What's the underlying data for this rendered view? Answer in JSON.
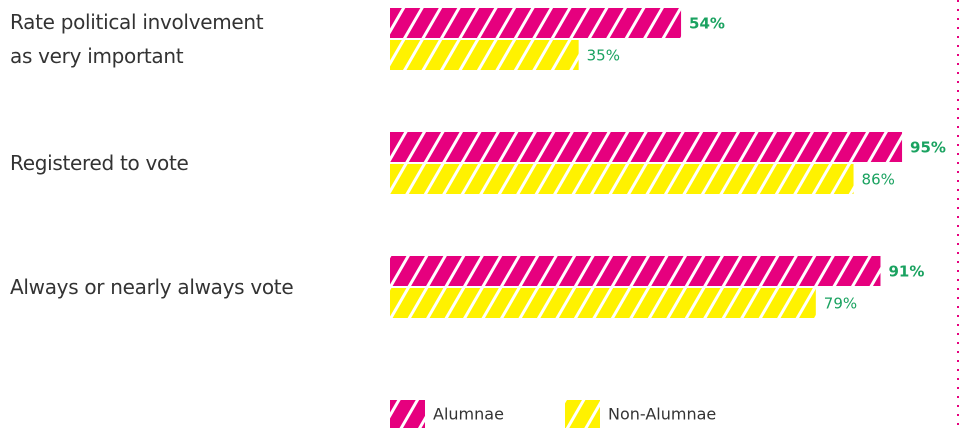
{
  "chart_data": {
    "type": "bar",
    "orientation": "horizontal",
    "categories": [
      "Rate political involvement\nas very important",
      "Registered to vote",
      "Always or nearly always vote"
    ],
    "series": [
      {
        "name": "Alumnae",
        "color": "#e6007e",
        "values": [
          54,
          95,
          91
        ],
        "value_labels": [
          "54%",
          "95%",
          "91%"
        ]
      },
      {
        "name": "Non-Alumnae",
        "color": "#fff200",
        "values": [
          35,
          86,
          79
        ],
        "value_labels": [
          "35%",
          "86%",
          "79%"
        ]
      }
    ],
    "xlim": [
      0,
      100
    ],
    "label_color": "#1aa260",
    "legend": "bottom"
  }
}
